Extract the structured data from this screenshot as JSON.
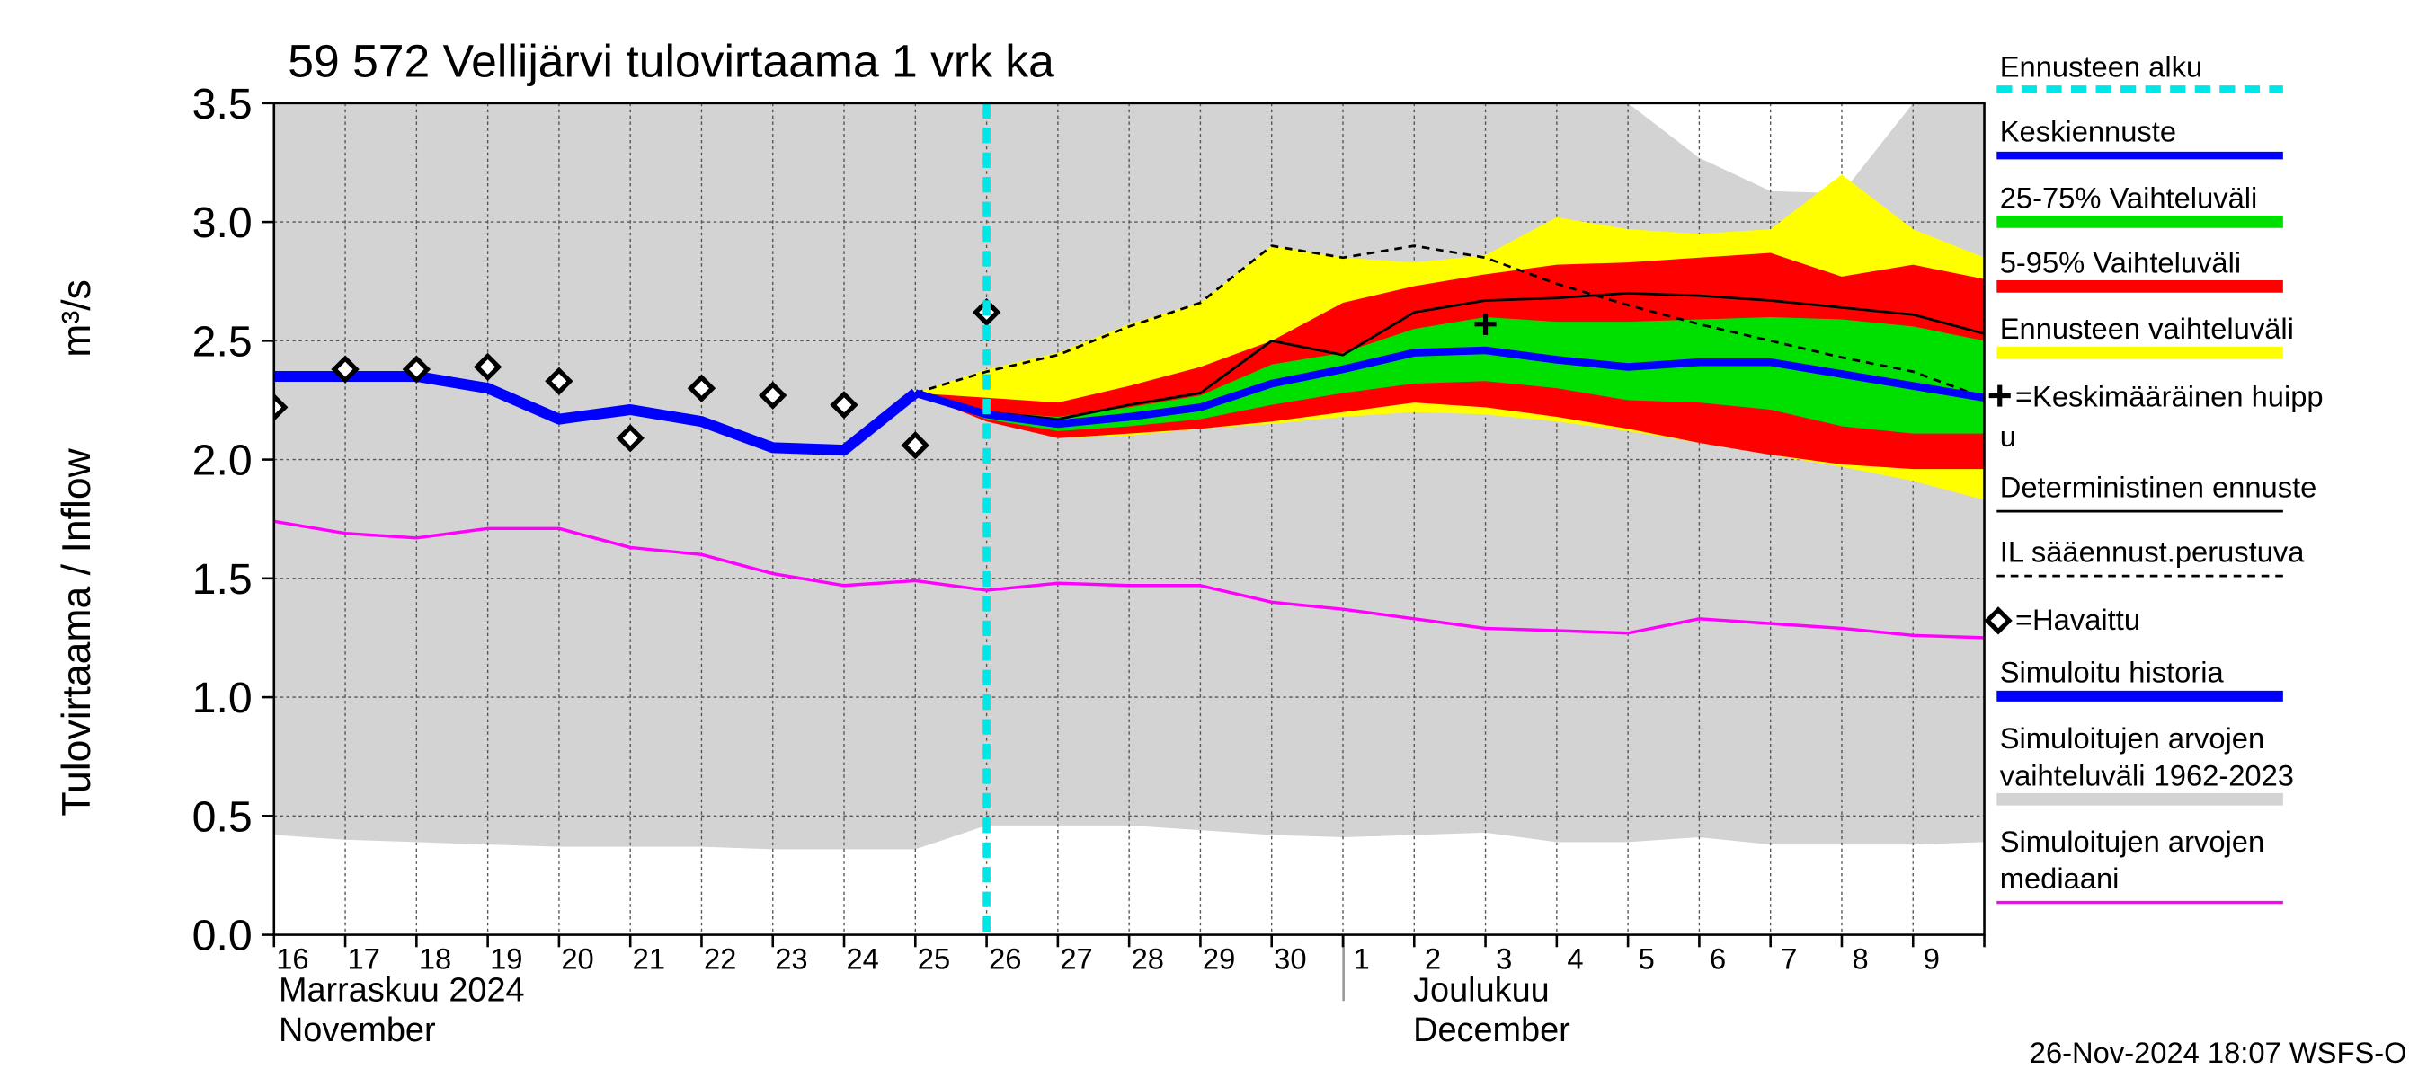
{
  "chart_data": {
    "type": "line",
    "title": "59 572 Vellijärvi tulovirtaama 1 vrk ka",
    "ylabel": "Tulovirtaama / Inflow",
    "yunit": "m³/s",
    "categories": [
      "16",
      "17",
      "18",
      "19",
      "20",
      "21",
      "22",
      "23",
      "24",
      "25",
      "26",
      "27",
      "28",
      "29",
      "30",
      "1",
      "2",
      "3",
      "4",
      "5",
      "6",
      "7",
      "8",
      "9",
      null
    ],
    "x_groups": [
      {
        "lines": [
          "Marraskuu 2024",
          "November"
        ]
      },
      {
        "lines": [
          "Joulukuu",
          "December"
        ]
      }
    ],
    "ylim": [
      0,
      3.5
    ],
    "yticks": [
      {
        "value": 0,
        "label": "0.0"
      },
      0.5,
      {
        "value": 1,
        "label": "1.0"
      },
      1.5,
      {
        "value": 2,
        "label": "2.0"
      },
      2.5,
      {
        "value": 3,
        "label": "3.0"
      },
      3.5
    ],
    "grid": true,
    "footer": "26-Nov-2024 18:07 WSFS-O",
    "series": [
      {
        "name": [
          "Ennusteen alku"
        ],
        "kind": "vline",
        "color": "#00e5e5",
        "x": 10
      },
      {
        "name": [
          "Keskiennuste"
        ],
        "kind": "line",
        "color": "#0000ff",
        "width": 5,
        "values": [
          null,
          null,
          null,
          null,
          null,
          null,
          null,
          null,
          null,
          2.28,
          2.19,
          2.15,
          2.18,
          2.22,
          2.32,
          2.38,
          2.45,
          2.46,
          2.42,
          2.39,
          2.41,
          2.41,
          2.36,
          2.31,
          2.26
        ]
      },
      {
        "name": [
          "25-75% Vaihteluväli"
        ],
        "kind": "band",
        "color": "#00e000",
        "upper": [
          null,
          null,
          null,
          null,
          null,
          null,
          null,
          null,
          null,
          2.28,
          2.2,
          2.18,
          2.22,
          2.27,
          2.4,
          2.45,
          2.55,
          2.6,
          2.58,
          2.58,
          2.59,
          2.6,
          2.59,
          2.56,
          2.5
        ],
        "lower": [
          null,
          null,
          null,
          null,
          null,
          null,
          null,
          null,
          null,
          2.28,
          2.17,
          2.12,
          2.14,
          2.17,
          2.23,
          2.28,
          2.32,
          2.33,
          2.3,
          2.25,
          2.24,
          2.21,
          2.14,
          2.11,
          2.11
        ]
      },
      {
        "name": [
          "5-95% Vaihteluväli"
        ],
        "kind": "band",
        "color": "#ff0000",
        "upper": [
          null,
          null,
          null,
          null,
          null,
          null,
          null,
          null,
          null,
          2.28,
          2.26,
          2.24,
          2.31,
          2.39,
          2.5,
          2.66,
          2.73,
          2.78,
          2.82,
          2.83,
          2.85,
          2.87,
          2.77,
          2.82,
          2.76
        ],
        "lower": [
          null,
          null,
          null,
          null,
          null,
          null,
          null,
          null,
          null,
          2.28,
          2.16,
          2.09,
          2.11,
          2.13,
          2.16,
          2.2,
          2.24,
          2.22,
          2.18,
          2.13,
          2.07,
          2.02,
          1.98,
          1.96,
          1.96
        ]
      },
      {
        "name": [
          "Ennusteen vaihteluväli"
        ],
        "kind": "band",
        "color": "#ffff00",
        "upper": [
          null,
          null,
          null,
          null,
          null,
          null,
          null,
          null,
          null,
          2.28,
          2.38,
          2.45,
          2.57,
          2.66,
          2.9,
          2.85,
          2.83,
          2.86,
          3.02,
          2.97,
          2.95,
          2.97,
          3.2,
          2.97,
          2.85
        ],
        "lower": [
          null,
          null,
          null,
          null,
          null,
          null,
          null,
          null,
          null,
          2.28,
          2.17,
          2.09,
          2.1,
          2.13,
          2.15,
          2.18,
          2.2,
          2.19,
          2.16,
          2.12,
          2.07,
          2.02,
          1.97,
          1.91,
          1.83
        ]
      },
      {
        "name": [
          "=Keskimääräinen huipp",
          "u"
        ],
        "kind": "cross",
        "color": "#000000",
        "x": 17,
        "value": 2.57
      },
      {
        "name": [
          "Deterministinen ennuste"
        ],
        "kind": "line",
        "color": "#000000",
        "width": 1.6,
        "values": [
          null,
          null,
          null,
          null,
          null,
          null,
          null,
          null,
          null,
          2.28,
          2.2,
          2.17,
          2.23,
          2.28,
          2.5,
          2.44,
          2.62,
          2.67,
          2.68,
          2.7,
          2.69,
          2.67,
          2.64,
          2.61,
          2.53
        ]
      },
      {
        "name": [
          "IL sääennust.perustuva"
        ],
        "kind": "dashed",
        "color": "#000000",
        "width": 1.6,
        "values": [
          null,
          null,
          null,
          null,
          null,
          null,
          null,
          null,
          null,
          2.28,
          2.37,
          2.44,
          2.56,
          2.66,
          2.9,
          2.85,
          2.9,
          2.85,
          2.74,
          2.65,
          2.57,
          2.5,
          2.43,
          2.37,
          2.26
        ]
      },
      {
        "name": [
          "=Havaittu"
        ],
        "kind": "diamond",
        "color": "#000000",
        "values": [
          2.22,
          2.38,
          2.38,
          2.39,
          2.33,
          2.09,
          2.3,
          2.27,
          2.23,
          2.06,
          2.62,
          null,
          null,
          null,
          null,
          null,
          null,
          null,
          null,
          null,
          null,
          null,
          null,
          null,
          null
        ]
      },
      {
        "name": [
          "Simuloitu historia"
        ],
        "kind": "line",
        "color": "#0000ff",
        "width": 7,
        "values": [
          2.35,
          2.35,
          2.35,
          2.3,
          2.17,
          2.21,
          2.16,
          2.05,
          2.04,
          2.28,
          null,
          null,
          null,
          null,
          null,
          null,
          null,
          null,
          null,
          null,
          null,
          null,
          null,
          null,
          null
        ]
      },
      {
        "name": [
          "Simuloitujen arvojen",
          "vaihteluväli 1962-2023"
        ],
        "kind": "band",
        "color": "#d3d3d3",
        "upper": [
          3.5,
          3.5,
          3.5,
          3.5,
          3.5,
          3.5,
          3.5,
          3.5,
          3.5,
          3.5,
          3.5,
          3.5,
          3.5,
          3.5,
          3.5,
          3.5,
          3.5,
          3.5,
          3.5,
          3.5,
          3.27,
          3.13,
          3.12,
          3.5,
          3.5
        ],
        "lower": [
          0.42,
          0.4,
          0.39,
          0.38,
          0.37,
          0.37,
          0.37,
          0.36,
          0.36,
          0.36,
          0.46,
          0.46,
          0.46,
          0.44,
          0.42,
          0.41,
          0.42,
          0.43,
          0.39,
          0.39,
          0.41,
          0.38,
          0.38,
          0.38,
          0.39
        ]
      },
      {
        "name": [
          "Simuloitujen arvojen",
          "mediaani"
        ],
        "kind": "line",
        "color": "#ff00ff",
        "width": 2,
        "values": [
          1.74,
          1.69,
          1.67,
          1.71,
          1.71,
          1.63,
          1.6,
          1.52,
          1.47,
          1.49,
          1.45,
          1.48,
          1.47,
          1.47,
          1.4,
          1.37,
          1.33,
          1.29,
          1.28,
          1.27,
          1.33,
          1.31,
          1.29,
          1.26,
          1.25
        ]
      }
    ]
  }
}
